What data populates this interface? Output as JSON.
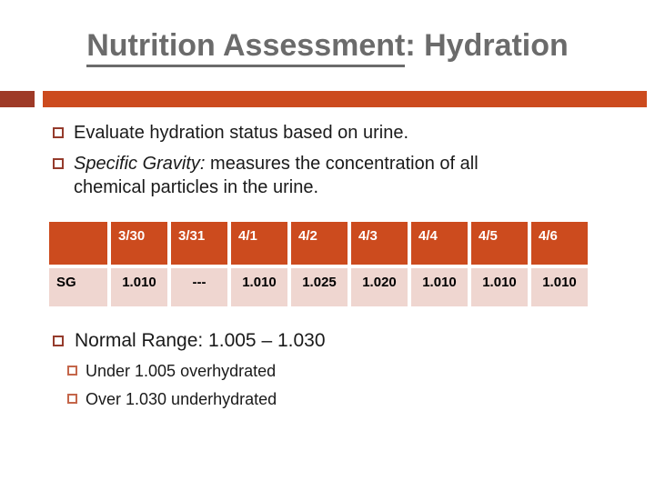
{
  "slide": {
    "title": {
      "underlined": "Nutrition Assessment",
      "rest": ": Hydration"
    },
    "bullets": [
      {
        "text": "Evaluate hydration status based on urine."
      },
      {
        "lead_italic": "Specific Gravity:",
        "text": " measures the concentration of all chemical particles in the urine."
      }
    ],
    "table": {
      "header": [
        "",
        "3/30",
        "3/31",
        "4/1",
        "4/2",
        "4/3",
        "4/4",
        "4/5",
        "4/6"
      ],
      "rows": [
        [
          "SG",
          "1.010",
          "---",
          "1.010",
          "1.025",
          "1.020",
          "1.010",
          "1.010",
          "1.010"
        ]
      ]
    },
    "normal_range": {
      "text": "Normal Range: 1.005 – 1.030",
      "sub_bullets": [
        "Under 1.005 overhydrated",
        "Over 1.030 underhydrated"
      ]
    },
    "colors": {
      "accent_orange": "#cc4b1e",
      "accent_maroon": "#9e3a27",
      "table_row_pink": "#efd6d0",
      "title_gray": "#6b6b6b"
    }
  }
}
